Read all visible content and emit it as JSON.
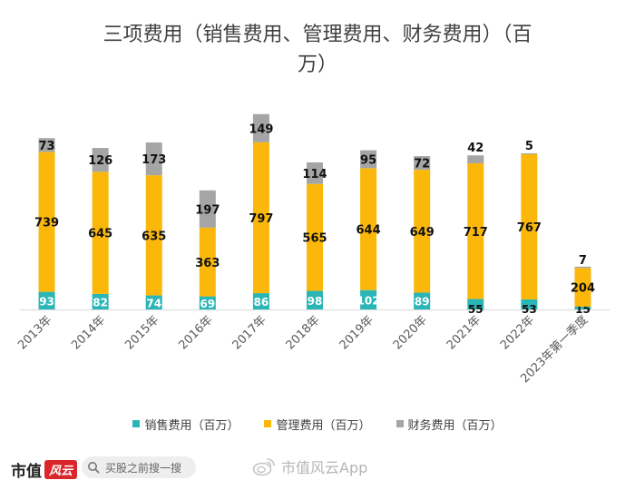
{
  "chart_data": {
    "type": "bar",
    "stacked": true,
    "title": "三项费用（销售费用、管理费用、财务费用）（百万）",
    "categories": [
      "2013年",
      "2014年",
      "2015年",
      "2016年",
      "2017年",
      "2018年",
      "2019年",
      "2020年",
      "2021年",
      "2022年",
      "2023年第一季度"
    ],
    "series": [
      {
        "name": "销售费用（百万）",
        "color": "#2ab5b6",
        "values": [
          93,
          82,
          74,
          69,
          86,
          98,
          102,
          89,
          55,
          53,
          15
        ]
      },
      {
        "name": "管理费用（百万）",
        "color": "#fbb80b",
        "values": [
          739,
          645,
          635,
          363,
          797,
          565,
          644,
          649,
          717,
          767,
          204
        ]
      },
      {
        "name": "财务费用（百万）",
        "color": "#a5a5a5",
        "values": [
          73,
          126,
          173,
          197,
          149,
          114,
          95,
          72,
          42,
          5,
          7
        ]
      }
    ],
    "ylim": [
      0,
      1050
    ],
    "grid": false,
    "legend": "bottom"
  },
  "title_lines": [
    "三项费用（销售费用、管理费用、财务费用）（百",
    "万）"
  ],
  "footer": {
    "brand_text": "市值",
    "brand_mark": "风云",
    "search_placeholder": "买股之前搜一搜",
    "weibo_text": "市值风云App"
  }
}
